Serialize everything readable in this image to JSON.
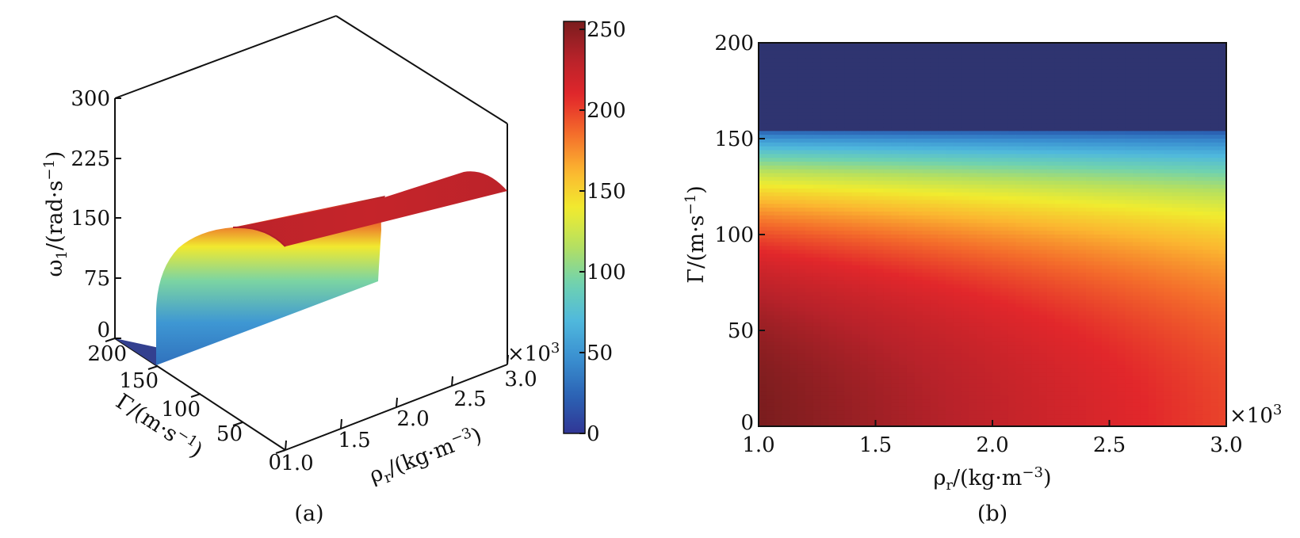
{
  "chart_data": [
    {
      "panel": "(a)",
      "type": "surface",
      "x_axis": {
        "label_symbol": "ρ",
        "label_sub": "r",
        "label_rest": "/(kg·m",
        "label_sup": "−3",
        "label_end": ")",
        "ticks": [
          "1.0",
          "1.5",
          "2.0",
          "2.5",
          "3.0"
        ],
        "range": [
          1.0,
          3.0
        ],
        "multiplier": "×10",
        "multiplier_exp": "3"
      },
      "y_axis": {
        "label_symbol": "Γ",
        "label_rest": "/(m·s",
        "label_sup": "−1",
        "label_end": ")",
        "ticks": [
          "0",
          "50",
          "100",
          "150",
          "200"
        ],
        "range": [
          0,
          200
        ]
      },
      "z_axis": {
        "label_symbol": "ω",
        "label_sub": "1",
        "label_rest": "/(rad·s",
        "label_sup": "−1",
        "label_end": ")",
        "ticks": [
          "0",
          "75",
          "150",
          "225",
          "300"
        ],
        "range": [
          0,
          300
        ]
      },
      "colorbar": {
        "ticks": [
          "0",
          "50",
          "100",
          "150",
          "200",
          "250"
        ],
        "range": [
          0,
          255
        ]
      },
      "surface_profile": {
        "gamma": [
          0,
          20,
          40,
          60,
          80,
          100,
          120,
          140,
          150,
          155,
          200
        ],
        "omega_at_rho_1_0": [
          255,
          250,
          240,
          225,
          205,
          180,
          150,
          110,
          90,
          0,
          0
        ],
        "omega_at_rho_3_0": [
          232,
          228,
          220,
          205,
          185,
          160,
          130,
          95,
          75,
          0,
          0
        ]
      }
    },
    {
      "panel": "(b)",
      "type": "heatmap",
      "x_axis": {
        "label_symbol": "ρ",
        "label_sub": "r",
        "label_rest": "/(kg·m",
        "label_sup": "−3",
        "label_end": ")",
        "ticks": [
          "1.0",
          "1.5",
          "2.0",
          "2.5",
          "3.0"
        ],
        "range": [
          1.0,
          3.0
        ],
        "multiplier": "×10",
        "multiplier_exp": "3"
      },
      "y_axis": {
        "label_symbol": "Γ",
        "label_rest": "/(m·s",
        "label_sup": "−1",
        "label_end": ")",
        "ticks": [
          "0",
          "50",
          "100",
          "150",
          "200"
        ],
        "range": [
          0,
          200
        ]
      },
      "value_range": [
        0,
        255
      ],
      "cutoff_gamma": 155
    }
  ],
  "colors": {
    "jet_stops": [
      "#313695",
      "#2b63b4",
      "#3a8fd0",
      "#4fb8dd",
      "#6fd2b0",
      "#b5e060",
      "#f0ec2f",
      "#fbb630",
      "#f46d2b",
      "#e2272b",
      "#b8222a",
      "#7a1d1e"
    ],
    "zero_color": "#2f3470",
    "axis": "#111111"
  }
}
